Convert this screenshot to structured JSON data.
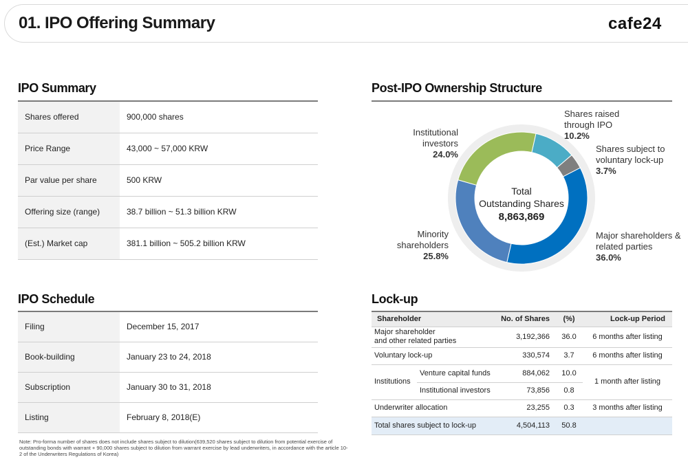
{
  "header": {
    "title": "01. IPO Offering Summary",
    "logo_main": "cafe",
    "logo_num": "24"
  },
  "ipo_summary": {
    "title": "IPO Summary",
    "rows": [
      {
        "label": "Shares offered",
        "value": "900,000 shares"
      },
      {
        "label": "Price Range",
        "value": "43,000 ~ 57,000 KRW"
      },
      {
        "label": "Par value per share",
        "value": "500 KRW"
      },
      {
        "label": "Offering size (range)",
        "value": "38.7 billion ~ 51.3 billion KRW"
      },
      {
        "label": "(Est.) Market cap",
        "value": "381.1 billion ~ 505.2 billion KRW"
      }
    ]
  },
  "ipo_schedule": {
    "title": "IPO Schedule",
    "rows": [
      {
        "label": "Filing",
        "value": "December 15, 2017"
      },
      {
        "label": "Book-building",
        "value": "January 23 to 24, 2018"
      },
      {
        "label": "Subscription",
        "value": "January 30 to 31, 2018"
      },
      {
        "label": "Listing",
        "value": "February 8, 2018(E)"
      }
    ]
  },
  "ownership": {
    "title": "Post-IPO Ownership Structure",
    "center_line1": "Total",
    "center_line2": "Outstanding Shares",
    "center_value": "8,863,869",
    "labels": {
      "ipo": {
        "text1": "Shares raised",
        "text2": "through IPO",
        "pct": "10.2%"
      },
      "voluntary": {
        "text1": "Shares subject to",
        "text2": "voluntary lock-up",
        "pct": "3.7%"
      },
      "major": {
        "text1": "Major shareholders &",
        "text2": "related parties",
        "pct": "36.0%"
      },
      "minority": {
        "text1": "Minority",
        "text2": "shareholders",
        "pct": "25.8%"
      },
      "institutional": {
        "text1": "Institutional",
        "text2": "investors",
        "pct": "24.0%"
      }
    }
  },
  "chart_data": {
    "type": "pie",
    "categories": [
      "Shares raised through IPO",
      "Shares subject to voluntary lock-up",
      "Major shareholders & related parties",
      "Minority shareholders",
      "Institutional investors"
    ],
    "values": [
      10.2,
      3.7,
      36.0,
      25.8,
      24.0
    ],
    "colors": [
      "#4bacc6",
      "#7f7f7f",
      "#0070c0",
      "#4f81bd",
      "#9bbb59"
    ],
    "title": "Post-IPO Ownership Structure"
  },
  "lockup": {
    "title": "Lock-up",
    "headers": {
      "shareholder": "Shareholder",
      "shares": "No. of Shares",
      "pct": "(%)",
      "period": "Lock-up Period"
    },
    "major": {
      "label1": "Major shareholder",
      "label2": "and other related parties",
      "shares": "3,192,366",
      "pct": "36.0",
      "period": "6 months after listing"
    },
    "voluntary": {
      "label": "Voluntary lock-up",
      "shares": "330,574",
      "pct": "3.7",
      "period": "6 months after listing"
    },
    "institutions": {
      "label": "Institutions",
      "period": "1 month after listing",
      "vc": {
        "label": "Venture capital funds",
        "shares": "884,062",
        "pct": "10.0"
      },
      "inst": {
        "label": "Institutional investors",
        "shares": "73,856",
        "pct": "0.8"
      }
    },
    "underwriter": {
      "label": "Underwriter allocation",
      "shares": "23,255",
      "pct": "0.3",
      "period": "3 months after listing"
    },
    "total": {
      "label": "Total shares subject to lock-up",
      "shares": "4,504,113",
      "pct": "50.8"
    }
  },
  "note": "Note: Pro-forma number of shares does not include shares subject to dilution(639,520 shares subject to dilution from potential exercise of outstanding bonds with warrant + 90,000 shares subject to dilution from warrant exercise by lead underwriters, in accordance with the article 10-2 of the Underwriters Regulations of Korea)"
}
